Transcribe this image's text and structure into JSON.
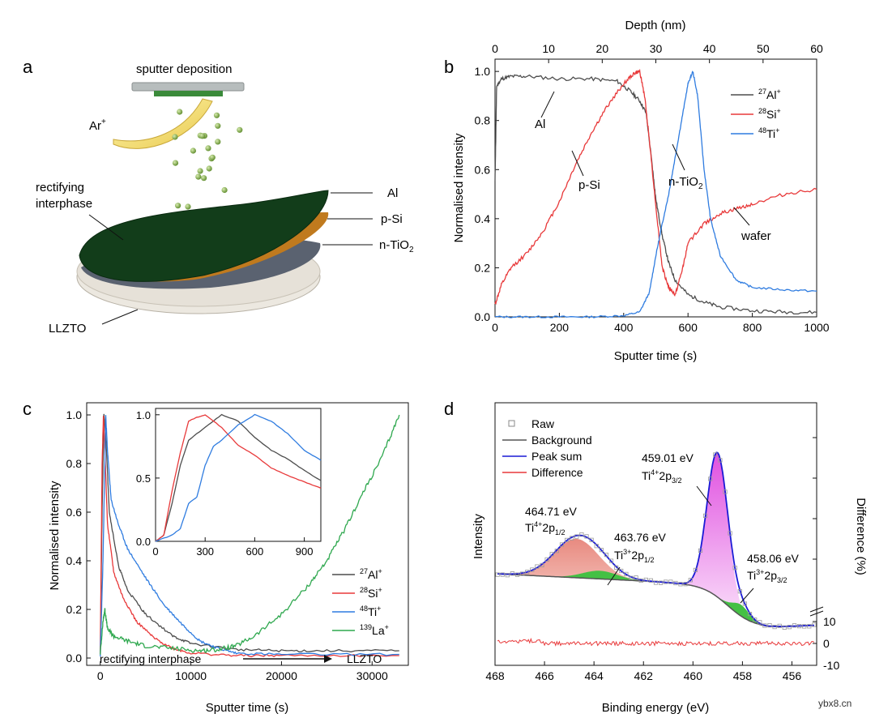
{
  "panels": {
    "a": "a",
    "b": "b",
    "c": "c",
    "d": "d"
  },
  "schematic": {
    "sputter_label": "sputter deposition",
    "ar_label": "Ar",
    "ar_sup": "+",
    "rectifying1": "rectifying",
    "rectifying2": "interphase",
    "al": "Al",
    "psi": "p-Si",
    "ntio2_main": "n-TiO",
    "ntio2_sub": "2",
    "llzto": "LLZTO"
  },
  "colors": {
    "al": "#4d4d4d",
    "si": "#e8393a",
    "ti": "#2f7ce0",
    "la": "#2fa84f",
    "bg": "#555555",
    "peak": "#1a1ad6",
    "diff": "#e8393a",
    "ti4_fill": "#e060e0",
    "ti3_fill": "#44c044",
    "ti4_low_fill": "#e88a80"
  },
  "chart_data": [
    {
      "panel": "b",
      "type": "line",
      "xlabel": "Sputter time (s)",
      "x2label": "Depth (nm)",
      "ylabel": "Normalised intensity",
      "xlim": [
        0,
        1000
      ],
      "x2lim": [
        0,
        60
      ],
      "ylim": [
        0,
        1.05
      ],
      "xticks": [
        0,
        200,
        400,
        600,
        800,
        1000
      ],
      "x2ticks": [
        0,
        10,
        20,
        30,
        40,
        50,
        60
      ],
      "yticks": [
        "0.0",
        "0.2",
        "0.4",
        "0.6",
        "0.8",
        "1.0"
      ],
      "legend_position": "top-right",
      "series": [
        {
          "name": "27Al+",
          "pre": "27",
          "sym": "Al",
          "sup": "+",
          "key": "al",
          "x": [
            0,
            5,
            20,
            50,
            100,
            200,
            300,
            380,
            420,
            450,
            470,
            490,
            500,
            520,
            540,
            560,
            600,
            650,
            700,
            800,
            900,
            1000
          ],
          "y": [
            0.55,
            0.94,
            0.97,
            0.98,
            0.98,
            0.97,
            0.97,
            0.96,
            0.92,
            0.88,
            0.83,
            0.6,
            0.48,
            0.33,
            0.22,
            0.15,
            0.09,
            0.06,
            0.04,
            0.025,
            0.02,
            0.018
          ]
        },
        {
          "name": "28Si+",
          "pre": "28",
          "sym": "Si",
          "sup": "+",
          "key": "si",
          "x": [
            0,
            20,
            50,
            100,
            150,
            200,
            250,
            300,
            350,
            400,
            430,
            450,
            465,
            480,
            500,
            520,
            540,
            560,
            580,
            600,
            650,
            700,
            750,
            800,
            900,
            1000
          ],
          "y": [
            0.05,
            0.13,
            0.2,
            0.26,
            0.35,
            0.47,
            0.62,
            0.75,
            0.86,
            0.95,
            0.99,
            1.0,
            0.9,
            0.72,
            0.45,
            0.2,
            0.12,
            0.09,
            0.18,
            0.3,
            0.38,
            0.42,
            0.44,
            0.46,
            0.5,
            0.52
          ]
        },
        {
          "name": "48Ti+",
          "pre": "48",
          "sym": "Ti",
          "sup": "+",
          "key": "ti",
          "x": [
            0,
            100,
            200,
            300,
            400,
            450,
            480,
            500,
            520,
            540,
            560,
            580,
            600,
            615,
            630,
            650,
            670,
            700,
            750,
            800,
            900,
            1000
          ],
          "y": [
            0.0,
            0.0,
            0.0,
            0.0,
            0.005,
            0.02,
            0.1,
            0.25,
            0.38,
            0.5,
            0.65,
            0.8,
            0.95,
            1.0,
            0.9,
            0.6,
            0.4,
            0.25,
            0.15,
            0.12,
            0.11,
            0.105
          ]
        }
      ],
      "annotations": [
        {
          "label": "Al"
        },
        {
          "label": "p-Si"
        },
        {
          "label": "n-TiO",
          "sub": "2"
        },
        {
          "label": "wafer"
        }
      ]
    },
    {
      "panel": "c",
      "type": "line",
      "xlabel": "Sputter time (s)",
      "ylabel": "Normalised intensity",
      "xlim": [
        -1500,
        34000
      ],
      "ylim": [
        -0.03,
        1.05
      ],
      "xticks": [
        0,
        10000,
        20000,
        30000
      ],
      "yticks": [
        "0.0",
        "0.2",
        "0.4",
        "0.6",
        "0.8",
        "1.0"
      ],
      "legend_position": "bottom-right",
      "bottom_note_left": "rectifying interphase",
      "bottom_note_right": "LLZTO",
      "series": [
        {
          "name": "27Al+",
          "pre": "27",
          "sym": "Al",
          "sup": "+",
          "key": "al",
          "x": [
            0,
            200,
            400,
            600,
            1000,
            2000,
            3000,
            5000,
            8000,
            10000,
            15000,
            20000,
            25000,
            33000
          ],
          "y": [
            0.02,
            0.6,
            1.0,
            0.92,
            0.6,
            0.38,
            0.28,
            0.18,
            0.09,
            0.06,
            0.035,
            0.03,
            0.03,
            0.03
          ]
        },
        {
          "name": "28Si+",
          "pre": "28",
          "sym": "Si",
          "sup": "+",
          "key": "si",
          "x": [
            0,
            200,
            350,
            500,
            800,
            1500,
            2500,
            4000,
            6000,
            8000,
            10000,
            15000,
            20000,
            33000
          ],
          "y": [
            0.02,
            0.8,
            1.0,
            0.85,
            0.55,
            0.35,
            0.25,
            0.15,
            0.08,
            0.04,
            0.02,
            0.01,
            0.01,
            0.01
          ]
        },
        {
          "name": "48Ti+",
          "pre": "48",
          "sym": "Ti",
          "sup": "+",
          "key": "ti",
          "x": [
            0,
            300,
            600,
            800,
            1200,
            2000,
            3000,
            5000,
            7000,
            9000,
            11000,
            13000,
            15000,
            20000,
            33000
          ],
          "y": [
            0.01,
            0.4,
            1.0,
            0.85,
            0.65,
            0.55,
            0.45,
            0.33,
            0.22,
            0.14,
            0.07,
            0.04,
            0.02,
            0.015,
            0.015
          ]
        },
        {
          "name": "139La+",
          "pre": "139",
          "sym": "La",
          "sup": "+",
          "key": "la",
          "x": [
            0,
            300,
            500,
            800,
            1500,
            3000,
            5000,
            8000,
            11000,
            13000,
            15000,
            17000,
            20000,
            23000,
            25000,
            27000,
            29000,
            31000,
            33000
          ],
          "y": [
            0.02,
            0.15,
            0.2,
            0.12,
            0.09,
            0.07,
            0.05,
            0.04,
            0.03,
            0.035,
            0.05,
            0.09,
            0.18,
            0.3,
            0.4,
            0.53,
            0.68,
            0.82,
            1.0
          ]
        }
      ],
      "inset": {
        "xlim": [
          0,
          1000
        ],
        "ylim": [
          0,
          1.05
        ],
        "xticks": [
          0,
          300,
          600,
          900
        ],
        "yticks": [
          "0.0",
          "0.5",
          "1.0"
        ],
        "series": [
          {
            "key": "al",
            "x": [
              0,
              50,
              100,
              150,
              200,
              300,
              400,
              500,
              600,
              700,
              800,
              900,
              1000
            ],
            "y": [
              0.0,
              0.05,
              0.3,
              0.6,
              0.8,
              0.9,
              1.0,
              0.95,
              0.82,
              0.72,
              0.65,
              0.56,
              0.48
            ]
          },
          {
            "key": "si",
            "x": [
              0,
              50,
              100,
              150,
              200,
              250,
              300,
              400,
              500,
              600,
              700,
              800,
              900,
              1000
            ],
            "y": [
              0.0,
              0.05,
              0.4,
              0.7,
              0.95,
              0.98,
              1.0,
              0.9,
              0.76,
              0.68,
              0.58,
              0.52,
              0.47,
              0.42
            ]
          },
          {
            "key": "ti",
            "x": [
              0,
              100,
              150,
              200,
              250,
              300,
              350,
              400,
              500,
              600,
              700,
              800,
              900,
              1000
            ],
            "y": [
              0.0,
              0.05,
              0.1,
              0.3,
              0.35,
              0.6,
              0.75,
              0.8,
              0.92,
              1.0,
              0.95,
              0.85,
              0.72,
              0.64
            ]
          }
        ]
      }
    },
    {
      "panel": "d",
      "type": "line",
      "xlabel": "Binding energy (eV)",
      "ylabel": "Intensity",
      "y2label": "Difference (%)",
      "xlim": [
        468,
        455
      ],
      "xticks": [
        468,
        466,
        464,
        462,
        460,
        458,
        456
      ],
      "y2ticks": [
        "10",
        "0",
        "-10"
      ],
      "legend_position": "top-left",
      "legend": [
        {
          "label": "Raw",
          "key": "raw"
        },
        {
          "label": "Background",
          "key": "bg"
        },
        {
          "label": "Peak sum",
          "key": "peak"
        },
        {
          "label": "Difference",
          "key": "diff"
        }
      ],
      "peaks": [
        {
          "energy": 459.01,
          "label_value": "459.01 eV",
          "label_species": "Ti",
          "label_charge": "4+",
          "label_level": "2p",
          "label_sub": "3/2"
        },
        {
          "energy": 464.71,
          "label_value": "464.71 eV",
          "label_species": "Ti",
          "label_charge": "4+",
          "label_level": "2p",
          "label_sub": "1/2"
        },
        {
          "energy": 463.76,
          "label_value": "463.76 eV",
          "label_species": "Ti",
          "label_charge": "3+",
          "label_level": "2p",
          "label_sub": "1/2"
        },
        {
          "energy": 458.06,
          "label_value": "458.06 eV",
          "label_species": "Ti",
          "label_charge": "3+",
          "label_level": "2p",
          "label_sub": "3/2"
        }
      ]
    }
  ],
  "watermark": "ybx8.cn"
}
